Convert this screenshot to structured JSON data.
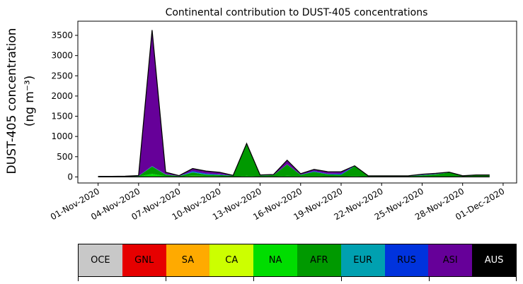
{
  "chart_data": {
    "type": "area",
    "stacked": true,
    "title": "Continental contribution to DUST-405 concentrations",
    "ylabel_line1": "DUST-405 concentration",
    "ylabel_line2": "(ng m⁻³)",
    "ylim": [
      -150,
      3850
    ],
    "yticks": [
      0,
      500,
      1000,
      1500,
      2000,
      2500,
      3000,
      3500
    ],
    "xlim_days": [
      -1.5,
      31
    ],
    "xticks": [
      "01-Nov-2020",
      "04-Nov-2020",
      "07-Nov-2020",
      "10-Nov-2020",
      "13-Nov-2020",
      "16-Nov-2020",
      "19-Nov-2020",
      "22-Nov-2020",
      "25-Nov-2020",
      "28-Nov-2020",
      "01-Dec-2020"
    ],
    "grid": false,
    "x": [
      "01-Nov-2020",
      "02-Nov-2020",
      "03-Nov-2020",
      "04-Nov-2020",
      "05-Nov-2020",
      "06-Nov-2020",
      "07-Nov-2020",
      "08-Nov-2020",
      "09-Nov-2020",
      "10-Nov-2020",
      "11-Nov-2020",
      "12-Nov-2020",
      "13-Nov-2020",
      "14-Nov-2020",
      "15-Nov-2020",
      "16-Nov-2020",
      "17-Nov-2020",
      "18-Nov-2020",
      "19-Nov-2020",
      "20-Nov-2020",
      "21-Nov-2020",
      "22-Nov-2020",
      "23-Nov-2020",
      "24-Nov-2020",
      "25-Nov-2020",
      "26-Nov-2020",
      "27-Nov-2020",
      "28-Nov-2020",
      "29-Nov-2020",
      "30-Nov-2020"
    ],
    "series": [
      {
        "name": "OCE",
        "color": "#c8c8c8",
        "values": [
          0,
          0,
          0,
          0,
          0,
          0,
          0,
          0,
          0,
          0,
          0,
          0,
          0,
          0,
          0,
          0,
          0,
          0,
          0,
          0,
          0,
          0,
          0,
          0,
          0,
          0,
          0,
          0,
          0,
          0
        ]
      },
      {
        "name": "GNL",
        "color": "#e60000",
        "values": [
          1,
          1,
          1,
          2,
          2,
          2,
          1,
          3,
          3,
          2,
          1,
          1,
          1,
          1,
          1,
          1,
          1,
          1,
          1,
          1,
          1,
          1,
          1,
          1,
          1,
          1,
          1,
          1,
          1,
          1
        ]
      },
      {
        "name": "SA",
        "color": "#ffaa00",
        "values": [
          1,
          1,
          1,
          2,
          3,
          2,
          1,
          8,
          5,
          3,
          1,
          2,
          2,
          1,
          2,
          2,
          2,
          1,
          1,
          1,
          1,
          1,
          1,
          1,
          1,
          1,
          1,
          1,
          1,
          1
        ]
      },
      {
        "name": "CA",
        "color": "#ccff00",
        "values": [
          1,
          1,
          1,
          2,
          10,
          3,
          1,
          5,
          4,
          3,
          1,
          3,
          2,
          2,
          3,
          3,
          2,
          2,
          1,
          1,
          1,
          1,
          1,
          1,
          1,
          1,
          1,
          1,
          1,
          1
        ]
      },
      {
        "name": "NA",
        "color": "#00dd00",
        "values": [
          2,
          2,
          3,
          4,
          60,
          10,
          4,
          15,
          12,
          10,
          5,
          20,
          8,
          10,
          20,
          15,
          20,
          10,
          10,
          20,
          8,
          5,
          5,
          5,
          8,
          10,
          5,
          5,
          5,
          5
        ]
      },
      {
        "name": "AFR",
        "color": "#009900",
        "values": [
          5,
          5,
          5,
          10,
          180,
          40,
          10,
          80,
          30,
          30,
          20,
          790,
          20,
          30,
          280,
          30,
          100,
          50,
          40,
          240,
          10,
          10,
          10,
          10,
          30,
          50,
          100,
          10,
          30,
          30
        ]
      },
      {
        "name": "EUR",
        "color": "#00a0b0",
        "values": [
          2,
          2,
          2,
          2,
          5,
          5,
          2,
          15,
          15,
          5,
          2,
          2,
          2,
          2,
          2,
          2,
          5,
          5,
          5,
          5,
          2,
          2,
          2,
          2,
          5,
          5,
          2,
          2,
          2,
          2
        ]
      },
      {
        "name": "RUS",
        "color": "#0033dd",
        "values": [
          1,
          1,
          1,
          2,
          10,
          5,
          3,
          20,
          15,
          10,
          3,
          2,
          3,
          3,
          5,
          5,
          15,
          10,
          20,
          5,
          3,
          3,
          3,
          3,
          5,
          5,
          3,
          3,
          3,
          3
        ]
      },
      {
        "name": "ASI",
        "color": "#660099",
        "values": [
          2,
          2,
          4,
          10,
          3360,
          50,
          10,
          60,
          60,
          50,
          5,
          5,
          12,
          10,
          100,
          20,
          40,
          50,
          50,
          2,
          3,
          4,
          4,
          5,
          15,
          15,
          5,
          5,
          5,
          5
        ]
      },
      {
        "name": "AUS",
        "color": "#000000",
        "values": [
          0,
          0,
          0,
          0,
          0,
          0,
          0,
          0,
          0,
          0,
          0,
          0,
          0,
          0,
          0,
          0,
          0,
          0,
          0,
          0,
          0,
          0,
          0,
          0,
          0,
          0,
          0,
          0,
          0,
          0
        ]
      }
    ]
  },
  "legend": {
    "labels": [
      "OCE",
      "GNL",
      "SA",
      "CA",
      "NA",
      "AFR",
      "EUR",
      "RUS",
      "ASI",
      "AUS"
    ],
    "colors": [
      "#c8c8c8",
      "#e60000",
      "#ffaa00",
      "#ccff00",
      "#00dd00",
      "#009900",
      "#00a0b0",
      "#0033dd",
      "#660099",
      "#000000"
    ],
    "text_colors": [
      "#000000",
      "#000000",
      "#000000",
      "#000000",
      "#000000",
      "#000000",
      "#000000",
      "#000000",
      "#000000",
      "#ffffff"
    ]
  }
}
